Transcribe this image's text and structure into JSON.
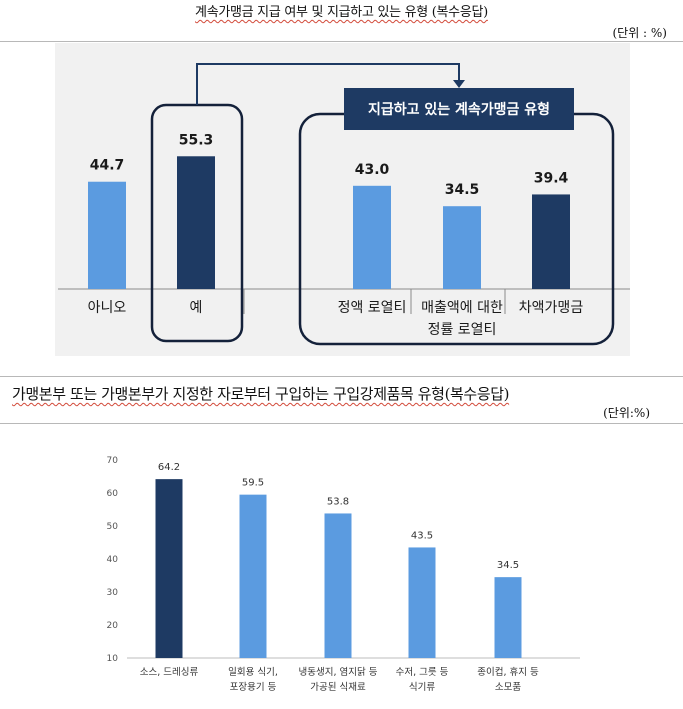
{
  "chart_data": [
    {
      "type": "bar",
      "title": "계속가맹금 지급 여부 및 지급하고 있는 유형 (복수응답)",
      "unit": "(단위 : %)",
      "callout": "지급하고 있는 계속가맹금 유형",
      "categories": [
        "아니오",
        "예",
        "정액 로열티",
        "매출액에 대한 정률 로열티",
        "차액가맹금"
      ],
      "category_lines": [
        [
          "아니오"
        ],
        [
          "예"
        ],
        [
          "정액 로열티"
        ],
        [
          "매출액에 대한",
          "정률 로열티"
        ],
        [
          "차액가맹금"
        ]
      ],
      "values": [
        44.7,
        55.3,
        43.0,
        34.5,
        39.4
      ],
      "value_labels": [
        "44.7",
        "55.3",
        "43.0",
        "34.5",
        "39.4"
      ],
      "colors": [
        "#5b9be0",
        "#1e3a63",
        "#5b9be0",
        "#5b9be0",
        "#1e3a63"
      ],
      "ylim": [
        0,
        60
      ],
      "grid": false
    },
    {
      "type": "bar",
      "title": "가맹본부 또는 가맹본부가 지정한 자로부터 구입하는 구입강제품목 유형(복수응답)",
      "unit": "(단위:%)",
      "categories": [
        "소스, 드레싱류",
        "일회용 식기, 포장용기 등",
        "냉동생지, 염지닭 등 가공된 식재료",
        "수저, 그릇 등 식기류",
        "종이컵, 휴지 등 소모품"
      ],
      "category_lines": [
        [
          "소스, 드레싱류"
        ],
        [
          "일회용 식기,",
          "포장용기 등"
        ],
        [
          "냉동생지, 염지닭 등",
          "가공된 식재료"
        ],
        [
          "수저, 그릇 등",
          "식기류"
        ],
        [
          "종이컵, 휴지 등",
          "소모품"
        ]
      ],
      "values": [
        64.2,
        59.5,
        53.8,
        43.5,
        34.5
      ],
      "value_labels": [
        "64.2",
        "59.5",
        "53.8",
        "43.5",
        "34.5"
      ],
      "colors": [
        "#1e3a63",
        "#5b9be0",
        "#5b9be0",
        "#5b9be0",
        "#5b9be0"
      ],
      "ylim": [
        10,
        70
      ],
      "yticks": [
        "10",
        "20",
        "30",
        "40",
        "50",
        "60",
        "70"
      ],
      "grid": false
    }
  ]
}
